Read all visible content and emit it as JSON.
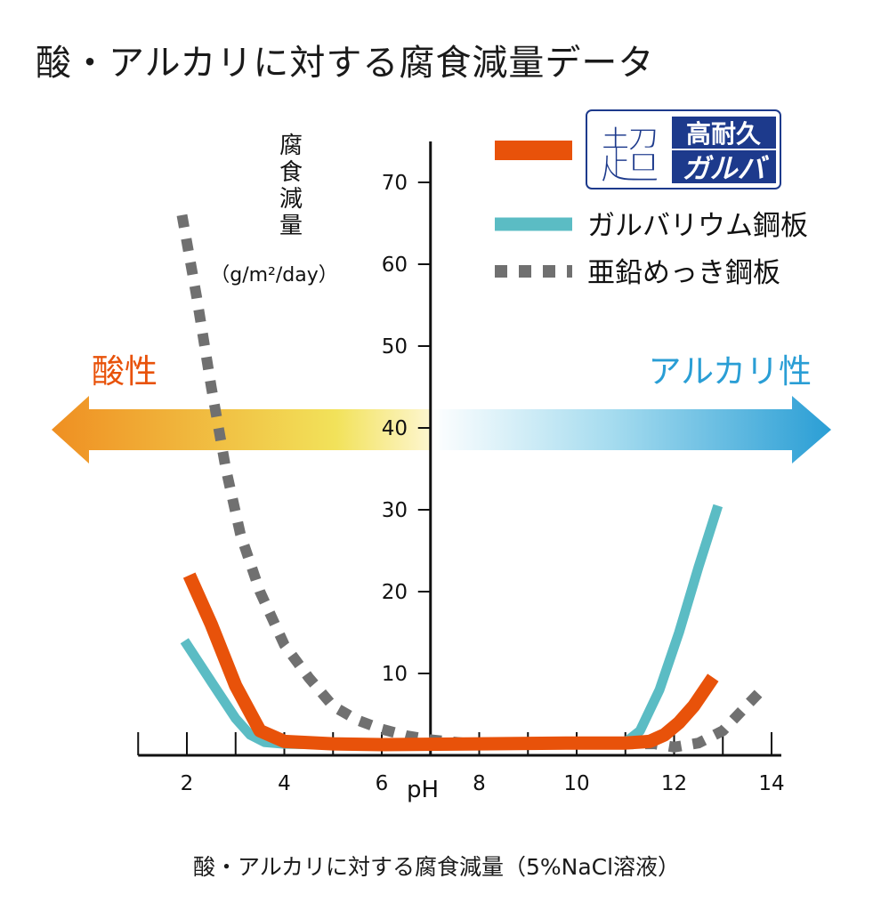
{
  "title": "酸・アルカリに対する腐食減量データ",
  "caption": "酸・アルカリに対する腐食減量（5%NaCl溶液）",
  "colors": {
    "super_galva": "#e8520a",
    "galvalume": "#5bbcc4",
    "zinc": "#707070",
    "acid_arrow": "#ef8f22",
    "alkali_arrow": "#2a9ed5",
    "logo_blue": "#1d3a8c"
  },
  "chart_data": {
    "type": "line",
    "ylabel": "腐食減量",
    "yunit": "（g/m²/day）",
    "xlabel": "pH",
    "xlim": [
      1,
      14.2
    ],
    "ylim": [
      0,
      75
    ],
    "x_ticks": [
      2,
      4,
      6,
      8,
      10,
      12,
      14
    ],
    "y_ticks": [
      10,
      20,
      30,
      40,
      50,
      60,
      70
    ],
    "y_axis_at_x": 7,
    "regions": {
      "acid": "酸性",
      "alkali": "アルカリ性"
    },
    "logo": {
      "kanji": "超",
      "top": "高耐久",
      "bottom": "ガルバ"
    },
    "series": [
      {
        "key": "super_galva",
        "name": "超高耐久ガルバ",
        "x": [
          2.05,
          2.5,
          3.0,
          3.5,
          4.0,
          5.0,
          6.0,
          8.0,
          10.0,
          11.0,
          11.5,
          11.8,
          12.1,
          12.4,
          12.8
        ],
        "y": [
          22,
          16,
          8.5,
          3.0,
          1.7,
          1.4,
          1.3,
          1.4,
          1.5,
          1.5,
          1.7,
          2.5,
          4.0,
          6.0,
          9.5
        ]
      },
      {
        "key": "galvalume",
        "name": "ガルバリウム鋼板",
        "x": [
          1.95,
          2.5,
          3.0,
          3.3,
          3.6,
          4.0,
          5.0,
          6.0,
          8.0,
          10.0,
          11.0,
          11.3,
          11.7,
          12.1,
          12.5,
          12.9
        ],
        "y": [
          14.0,
          9.0,
          4.5,
          2.5,
          1.6,
          1.4,
          1.3,
          1.3,
          1.4,
          1.5,
          1.6,
          3.0,
          8.0,
          15.0,
          23.0,
          30.5
        ]
      },
      {
        "key": "zinc",
        "name": "亜鉛めっき鋼板",
        "x": [
          1.9,
          2.2,
          2.5,
          2.8,
          3.1,
          3.5,
          4.0,
          4.5,
          5.0,
          5.5,
          6.0,
          6.5,
          7.0,
          7.7,
          8.5,
          10.0,
          11.0,
          11.6,
          12.0,
          12.5,
          13.0,
          13.4,
          13.8
        ],
        "y": [
          66,
          56,
          45,
          35,
          27,
          20,
          13.5,
          9.5,
          6.0,
          4.3,
          3.2,
          2.4,
          1.9,
          1.5,
          1.4,
          1.4,
          1.4,
          1.4,
          1.0,
          1.5,
          3.0,
          5.5,
          8.0
        ]
      }
    ],
    "legend_position": "top-right"
  }
}
